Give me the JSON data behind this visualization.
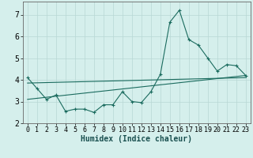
{
  "xlabel": "Humidex (Indice chaleur)",
  "background_color": "#d5efec",
  "grid_color": "#b8d8d5",
  "line_color": "#1a6b5e",
  "xlim": [
    -0.5,
    23.5
  ],
  "ylim": [
    2.0,
    7.6
  ],
  "yticks": [
    2,
    3,
    4,
    5,
    6,
    7
  ],
  "xticks": [
    0,
    1,
    2,
    3,
    4,
    5,
    6,
    7,
    8,
    9,
    10,
    11,
    12,
    13,
    14,
    15,
    16,
    17,
    18,
    19,
    20,
    21,
    22,
    23
  ],
  "curve1_x": [
    0,
    1,
    2,
    3,
    4,
    5,
    6,
    7,
    8,
    9,
    10,
    11,
    12,
    13,
    14,
    15,
    16,
    17,
    18,
    19,
    20,
    21,
    22,
    23
  ],
  "curve1_y": [
    4.1,
    3.6,
    3.1,
    3.3,
    2.55,
    2.65,
    2.65,
    2.5,
    2.85,
    2.85,
    3.45,
    3.0,
    2.95,
    3.45,
    4.25,
    6.65,
    7.2,
    5.85,
    5.6,
    5.0,
    4.4,
    4.7,
    4.65,
    4.2
  ],
  "line1_x": [
    0,
    23
  ],
  "line1_y": [
    3.1,
    4.2
  ],
  "line2_x": [
    0,
    23
  ],
  "line2_y": [
    3.85,
    4.1
  ],
  "tick_fontsize": 6,
  "xlabel_fontsize": 7
}
